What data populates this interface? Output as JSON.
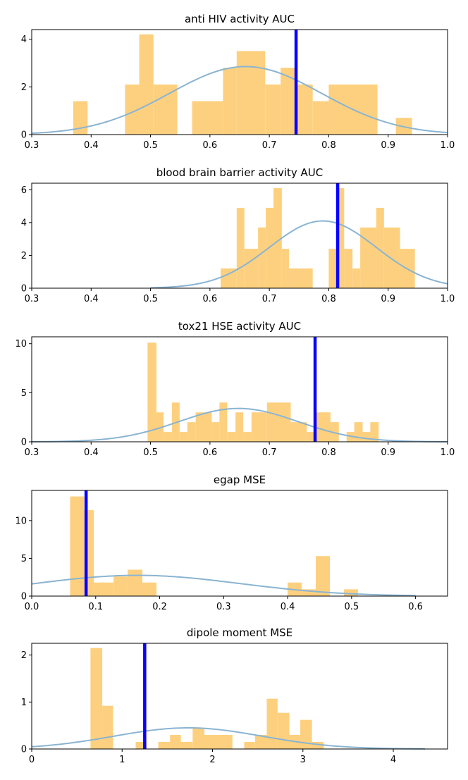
{
  "figure_title": "",
  "colors": {
    "bars": "#fdd07f",
    "curve": "#8ab4d2",
    "reference_line": "#0a00ff"
  },
  "chart_data": [
    {
      "type": "histogram",
      "title": "anti HIV activity AUC",
      "xlim": [
        0.3,
        1.0
      ],
      "ylim": [
        0,
        4.4
      ],
      "xticks": [
        0.3,
        0.4,
        0.5,
        0.6,
        0.7,
        0.8,
        0.9,
        1.0
      ],
      "xtick_labels": [
        "0.3",
        "0.4",
        "0.5",
        "0.6",
        "0.7",
        "0.8",
        "0.9",
        "1.0"
      ],
      "yticks": [
        0,
        2,
        4
      ],
      "ytick_labels": [
        "0",
        "2",
        "4"
      ],
      "bins": [
        {
          "x0": 0.37,
          "x1": 0.394,
          "h": 1.4
        },
        {
          "x0": 0.457,
          "x1": 0.481,
          "h": 2.1
        },
        {
          "x0": 0.481,
          "x1": 0.505,
          "h": 4.2
        },
        {
          "x0": 0.505,
          "x1": 0.545,
          "h": 2.1
        },
        {
          "x0": 0.57,
          "x1": 0.622,
          "h": 1.4
        },
        {
          "x0": 0.622,
          "x1": 0.645,
          "h": 2.8
        },
        {
          "x0": 0.645,
          "x1": 0.693,
          "h": 3.5
        },
        {
          "x0": 0.693,
          "x1": 0.719,
          "h": 2.1
        },
        {
          "x0": 0.719,
          "x1": 0.746,
          "h": 2.8
        },
        {
          "x0": 0.746,
          "x1": 0.773,
          "h": 2.1
        },
        {
          "x0": 0.773,
          "x1": 0.8,
          "h": 1.4
        },
        {
          "x0": 0.8,
          "x1": 0.882,
          "h": 2.1
        },
        {
          "x0": 0.913,
          "x1": 0.94,
          "h": 0.7
        }
      ],
      "kde": {
        "mean": 0.66,
        "sd": 0.128,
        "peak": 2.85,
        "x_from": 0.3,
        "x_to": 1.0
      },
      "reference_x": 0.745
    },
    {
      "type": "histogram",
      "title": "blood brain barrier activity AUC",
      "xlim": [
        0.3,
        1.0
      ],
      "ylim": [
        0,
        6.4
      ],
      "xticks": [
        0.3,
        0.4,
        0.5,
        0.6,
        0.7,
        0.8,
        0.9,
        1.0
      ],
      "xtick_labels": [
        "0.3",
        "0.4",
        "0.5",
        "0.6",
        "0.7",
        "0.8",
        "0.9",
        "1.0"
      ],
      "yticks": [
        0,
        2,
        4,
        6
      ],
      "ytick_labels": [
        "0",
        "2",
        "4",
        "6"
      ],
      "bins": [
        {
          "x0": 0.618,
          "x1": 0.645,
          "h": 1.2
        },
        {
          "x0": 0.645,
          "x1": 0.658,
          "h": 4.9
        },
        {
          "x0": 0.658,
          "x1": 0.681,
          "h": 2.4
        },
        {
          "x0": 0.681,
          "x1": 0.694,
          "h": 3.7
        },
        {
          "x0": 0.694,
          "x1": 0.707,
          "h": 4.9
        },
        {
          "x0": 0.707,
          "x1": 0.721,
          "h": 6.1
        },
        {
          "x0": 0.721,
          "x1": 0.733,
          "h": 2.4
        },
        {
          "x0": 0.733,
          "x1": 0.773,
          "h": 1.2
        },
        {
          "x0": 0.8,
          "x1": 0.814,
          "h": 2.4
        },
        {
          "x0": 0.814,
          "x1": 0.826,
          "h": 6.1
        },
        {
          "x0": 0.826,
          "x1": 0.84,
          "h": 2.4
        },
        {
          "x0": 0.84,
          "x1": 0.853,
          "h": 1.2
        },
        {
          "x0": 0.853,
          "x1": 0.88,
          "h": 3.7
        },
        {
          "x0": 0.88,
          "x1": 0.893,
          "h": 4.9
        },
        {
          "x0": 0.893,
          "x1": 0.92,
          "h": 3.7
        },
        {
          "x0": 0.92,
          "x1": 0.945,
          "h": 2.4
        }
      ],
      "kde": {
        "mean": 0.79,
        "sd": 0.09,
        "peak": 4.1,
        "x_from": 0.5,
        "x_to": 1.0
      },
      "reference_x": 0.815
    },
    {
      "type": "histogram",
      "title": "tox21 HSE activity AUC",
      "xlim": [
        0.3,
        1.0
      ],
      "ylim": [
        0,
        10.7
      ],
      "xticks": [
        0.3,
        0.4,
        0.5,
        0.6,
        0.7,
        0.8,
        0.9,
        1.0
      ],
      "xtick_labels": [
        "0.3",
        "0.4",
        "0.5",
        "0.6",
        "0.7",
        "0.8",
        "0.9",
        "1.0"
      ],
      "yticks": [
        0,
        5,
        10
      ],
      "ytick_labels": [
        "0",
        "5",
        "10"
      ],
      "bins": [
        {
          "x0": 0.495,
          "x1": 0.51,
          "h": 10.1
        },
        {
          "x0": 0.51,
          "x1": 0.522,
          "h": 3.0
        },
        {
          "x0": 0.522,
          "x1": 0.536,
          "h": 1.0
        },
        {
          "x0": 0.536,
          "x1": 0.549,
          "h": 4.0
        },
        {
          "x0": 0.549,
          "x1": 0.562,
          "h": 1.0
        },
        {
          "x0": 0.562,
          "x1": 0.576,
          "h": 2.0
        },
        {
          "x0": 0.576,
          "x1": 0.603,
          "h": 3.0
        },
        {
          "x0": 0.603,
          "x1": 0.616,
          "h": 2.0
        },
        {
          "x0": 0.616,
          "x1": 0.629,
          "h": 4.0
        },
        {
          "x0": 0.629,
          "x1": 0.643,
          "h": 1.0
        },
        {
          "x0": 0.643,
          "x1": 0.656,
          "h": 3.0
        },
        {
          "x0": 0.656,
          "x1": 0.67,
          "h": 1.0
        },
        {
          "x0": 0.67,
          "x1": 0.696,
          "h": 3.0
        },
        {
          "x0": 0.696,
          "x1": 0.736,
          "h": 4.0
        },
        {
          "x0": 0.736,
          "x1": 0.763,
          "h": 2.0
        },
        {
          "x0": 0.763,
          "x1": 0.777,
          "h": 1.0
        },
        {
          "x0": 0.777,
          "x1": 0.803,
          "h": 3.0
        },
        {
          "x0": 0.803,
          "x1": 0.817,
          "h": 2.0
        },
        {
          "x0": 0.83,
          "x1": 0.843,
          "h": 1.0
        },
        {
          "x0": 0.843,
          "x1": 0.857,
          "h": 2.0
        },
        {
          "x0": 0.857,
          "x1": 0.87,
          "h": 1.0
        },
        {
          "x0": 0.87,
          "x1": 0.884,
          "h": 2.0
        }
      ],
      "kde": {
        "mean": 0.648,
        "sd": 0.1,
        "peak": 3.4,
        "x_from": 0.3,
        "x_to": 1.0
      },
      "reference_x": 0.777
    },
    {
      "type": "histogram",
      "title": "egap MSE",
      "xlim": [
        0.0,
        0.65
      ],
      "ylim": [
        0,
        14
      ],
      "xticks": [
        0.0,
        0.1,
        0.2,
        0.3,
        0.4,
        0.5,
        0.6
      ],
      "xtick_labels": [
        "0.0",
        "0.1",
        "0.2",
        "0.3",
        "0.4",
        "0.5",
        "0.6"
      ],
      "yticks": [
        0,
        5,
        10
      ],
      "ytick_labels": [
        "0",
        "5",
        "10"
      ],
      "bins": [
        {
          "x0": 0.06,
          "x1": 0.082,
          "h": 13.2
        },
        {
          "x0": 0.082,
          "x1": 0.097,
          "h": 11.4
        },
        {
          "x0": 0.097,
          "x1": 0.128,
          "h": 1.8
        },
        {
          "x0": 0.128,
          "x1": 0.15,
          "h": 2.6
        },
        {
          "x0": 0.15,
          "x1": 0.173,
          "h": 3.5
        },
        {
          "x0": 0.173,
          "x1": 0.195,
          "h": 1.8
        },
        {
          "x0": 0.4,
          "x1": 0.422,
          "h": 1.8
        },
        {
          "x0": 0.422,
          "x1": 0.444,
          "h": 0.9
        },
        {
          "x0": 0.444,
          "x1": 0.466,
          "h": 5.3
        },
        {
          "x0": 0.488,
          "x1": 0.51,
          "h": 0.9
        }
      ],
      "kde": {
        "mean": 0.165,
        "sd": 0.16,
        "peak": 2.75,
        "x_from": 0.0,
        "x_to": 0.6
      },
      "reference_x": 0.085
    },
    {
      "type": "histogram",
      "title": "dipole moment MSE",
      "xlim": [
        0,
        4.6
      ],
      "ylim": [
        0,
        2.25
      ],
      "xticks": [
        0,
        1,
        2,
        3,
        4
      ],
      "xtick_labels": [
        "0",
        "1",
        "2",
        "3",
        "4"
      ],
      "yticks": [
        0,
        1,
        2
      ],
      "ytick_labels": [
        "0",
        "1",
        "2"
      ],
      "bins": [
        {
          "x0": 0.65,
          "x1": 0.78,
          "h": 2.15
        },
        {
          "x0": 0.78,
          "x1": 0.9,
          "h": 0.92
        },
        {
          "x0": 1.15,
          "x1": 1.27,
          "h": 0.15
        },
        {
          "x0": 1.4,
          "x1": 1.53,
          "h": 0.15
        },
        {
          "x0": 1.53,
          "x1": 1.65,
          "h": 0.3
        },
        {
          "x0": 1.65,
          "x1": 1.78,
          "h": 0.15
        },
        {
          "x0": 1.78,
          "x1": 1.91,
          "h": 0.45
        },
        {
          "x0": 1.91,
          "x1": 2.22,
          "h": 0.3
        },
        {
          "x0": 2.35,
          "x1": 2.47,
          "h": 0.15
        },
        {
          "x0": 2.47,
          "x1": 2.6,
          "h": 0.3
        },
        {
          "x0": 2.6,
          "x1": 2.72,
          "h": 1.07
        },
        {
          "x0": 2.72,
          "x1": 2.85,
          "h": 0.77
        },
        {
          "x0": 2.85,
          "x1": 2.97,
          "h": 0.3
        },
        {
          "x0": 2.97,
          "x1": 3.1,
          "h": 0.62
        },
        {
          "x0": 3.1,
          "x1": 3.23,
          "h": 0.15
        }
      ],
      "kde": {
        "mean": 1.73,
        "sd": 0.82,
        "peak": 0.45,
        "x_from": 0.0,
        "x_to": 4.35
      },
      "reference_x": 1.25
    }
  ]
}
